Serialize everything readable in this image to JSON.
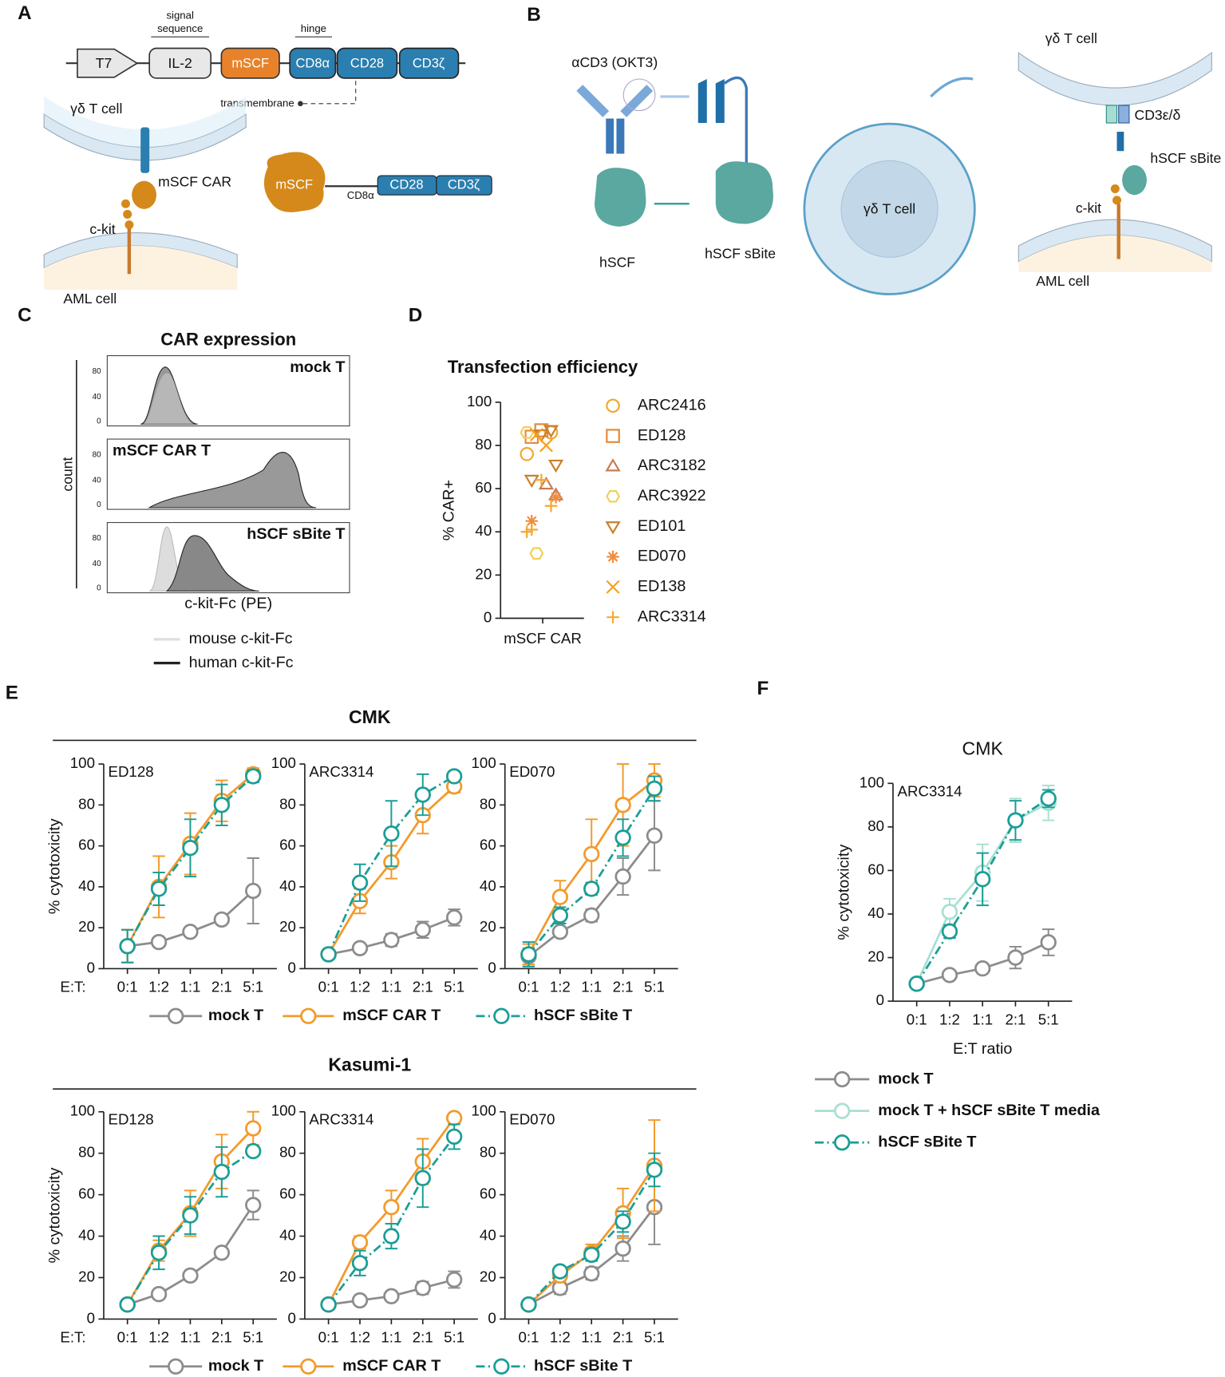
{
  "panel_labels": [
    "A",
    "B",
    "C",
    "D",
    "E",
    "F"
  ],
  "panel_a": {
    "t7": "T7",
    "il2": "IL-2",
    "mscf": "mSCF",
    "cd8a": "CD8α",
    "cd28": "CD28",
    "cd3z": "CD3ζ",
    "signal_1": "signal",
    "signal_2": "sequence",
    "hinge": "hinge",
    "transmembrane": "transmembrane",
    "gd_cell": "γδ T cell",
    "car": "mSCF CAR",
    "ckit": "c-kit",
    "aml": "AML cell"
  },
  "panel_b": {
    "okt3": "αCD3 (OKT3)",
    "hscf": "hSCF",
    "sbite": "hSCF sBite",
    "gd_cell": "γδ T cell",
    "cd3": "CD3ε/δ",
    "ckit": "c-kit",
    "aml": "AML cell"
  },
  "panel_c": {
    "title": "CAR expression",
    "rows": [
      "mock T",
      "mSCF CAR T",
      "hSCF sBite T"
    ],
    "yticks": [
      "80",
      "40",
      "0"
    ],
    "y_label": "count",
    "x_label": "c-kit-Fc (PE)",
    "legend": [
      "mouse c-kit-Fc",
      "human c-kit-Fc"
    ]
  },
  "panel_e": {
    "groups": [
      "CMK",
      "Kasumi-1"
    ]
  },
  "chart_data": [
    {
      "type": "scatter",
      "title": "Transfection efficiency",
      "y_label": "% CAR+",
      "categories": [
        "mSCF CAR"
      ],
      "ylim": [
        0,
        100
      ],
      "yticks": [
        0,
        20,
        40,
        60,
        80,
        100
      ],
      "series": [
        {
          "name": "ARC2416",
          "color": "#f0a830",
          "marker": "circle",
          "values": [
            76,
            86
          ]
        },
        {
          "name": "ED128",
          "color": "#e68a3c",
          "marker": "square",
          "values": [
            87,
            84
          ]
        },
        {
          "name": "ARC3182",
          "color": "#c87a50",
          "marker": "triangle-up",
          "values": [
            57,
            62
          ]
        },
        {
          "name": "ARC3922",
          "color": "#f2cf5a",
          "marker": "hexagon",
          "values": [
            30,
            86
          ]
        },
        {
          "name": "ED101",
          "color": "#c8812e",
          "marker": "triangle-down",
          "values": [
            87,
            85,
            64,
            71
          ]
        },
        {
          "name": "ED070",
          "color": "#f08c3c",
          "marker": "asterisk",
          "values": [
            45,
            56
          ]
        },
        {
          "name": "ED138",
          "color": "#f5a020",
          "marker": "x",
          "values": [
            80,
            85
          ]
        },
        {
          "name": "ARC3314",
          "color": "#f5a830",
          "marker": "plus",
          "values": [
            40,
            52,
            64,
            41
          ]
        }
      ]
    },
    {
      "type": "line",
      "annotation": "ED128",
      "y_label": "% cytotoxicity",
      "x_label": "E:T:",
      "categories": [
        "0:1",
        "1:2",
        "1:1",
        "2:1",
        "5:1"
      ],
      "ylim": [
        0,
        100
      ],
      "yticks": [
        0,
        20,
        40,
        60,
        80,
        100
      ],
      "series": [
        {
          "name": "mock T",
          "color": "#8c8c8c",
          "style": "solid",
          "values": [
            11,
            13,
            18,
            24,
            38
          ],
          "errors": [
            8,
            2,
            2,
            2,
            16
          ]
        },
        {
          "name": "mSCF CAR T",
          "color": "#f39a2b",
          "style": "solid",
          "values": [
            11,
            40,
            61,
            82,
            95
          ],
          "errors": [
            8,
            15,
            15,
            10,
            3
          ]
        },
        {
          "name": "hSCF sBite T",
          "color": "#1a9e96",
          "style": "dash-dot",
          "values": [
            11,
            39,
            59,
            80,
            94
          ],
          "errors": [
            8,
            8,
            14,
            10,
            3
          ]
        }
      ]
    },
    {
      "type": "line",
      "annotation": "ARC3314",
      "categories": [
        "0:1",
        "1:2",
        "1:1",
        "2:1",
        "5:1"
      ],
      "ylim": [
        0,
        100
      ],
      "yticks": [
        0,
        20,
        40,
        60,
        80,
        100
      ],
      "series": [
        {
          "name": "mock T",
          "color": "#8c8c8c",
          "style": "solid",
          "values": [
            7,
            10,
            14,
            19,
            25
          ],
          "errors": [
            1,
            2,
            3,
            4,
            4
          ]
        },
        {
          "name": "mSCF CAR T",
          "color": "#f39a2b",
          "style": "solid",
          "values": [
            7,
            33,
            52,
            75,
            89
          ],
          "errors": [
            1,
            6,
            8,
            9,
            3
          ]
        },
        {
          "name": "hSCF sBite T",
          "color": "#1a9e96",
          "style": "dash-dot",
          "values": [
            7,
            42,
            66,
            85,
            94
          ],
          "errors": [
            1,
            9,
            16,
            10,
            2
          ]
        }
      ]
    },
    {
      "type": "line",
      "annotation": "ED070",
      "categories": [
        "0:1",
        "1:2",
        "1:1",
        "2:1",
        "5:1"
      ],
      "ylim": [
        0,
        100
      ],
      "yticks": [
        0,
        20,
        40,
        60,
        80,
        100
      ],
      "series": [
        {
          "name": "mock T",
          "color": "#8c8c8c",
          "style": "solid",
          "values": [
            6,
            18,
            26,
            45,
            65
          ],
          "errors": [
            4,
            2,
            3,
            9,
            17
          ]
        },
        {
          "name": "mSCF CAR T",
          "color": "#f39a2b",
          "style": "solid",
          "values": [
            7,
            35,
            56,
            80,
            92
          ],
          "errors": [
            5,
            8,
            17,
            20,
            8
          ]
        },
        {
          "name": "hSCF sBite T",
          "color": "#1a9e96",
          "style": "dash-dot",
          "values": [
            7,
            26,
            39,
            64,
            88
          ],
          "errors": [
            6,
            4,
            3,
            9,
            6
          ]
        }
      ]
    },
    {
      "type": "line",
      "annotation": "ED128",
      "y_label": "% cytotoxicity",
      "x_label": "E:T:",
      "categories": [
        "0:1",
        "1:2",
        "1:1",
        "2:1",
        "5:1"
      ],
      "ylim": [
        0,
        100
      ],
      "yticks": [
        0,
        20,
        40,
        60,
        80,
        100
      ],
      "series": [
        {
          "name": "mock T",
          "color": "#8c8c8c",
          "style": "solid",
          "values": [
            7,
            12,
            21,
            32,
            55
          ],
          "errors": [
            1,
            1,
            1,
            1,
            7
          ]
        },
        {
          "name": "mSCF CAR T",
          "color": "#f39a2b",
          "style": "solid",
          "values": [
            7,
            33,
            51,
            76,
            92
          ],
          "errors": [
            1,
            5,
            11,
            13,
            8
          ]
        },
        {
          "name": "hSCF sBite T",
          "color": "#1a9e96",
          "style": "dash-dot",
          "values": [
            7,
            32,
            50,
            71,
            81
          ],
          "errors": [
            1,
            8,
            9,
            12,
            2
          ]
        }
      ]
    },
    {
      "type": "line",
      "annotation": "ARC3314",
      "categories": [
        "0:1",
        "1:2",
        "1:1",
        "2:1",
        "5:1"
      ],
      "ylim": [
        0,
        100
      ],
      "yticks": [
        0,
        20,
        40,
        60,
        80,
        100
      ],
      "series": [
        {
          "name": "mock T",
          "color": "#8c8c8c",
          "style": "solid",
          "values": [
            7,
            9,
            11,
            15,
            19
          ],
          "errors": [
            1,
            1,
            1,
            3,
            4
          ]
        },
        {
          "name": "mSCF CAR T",
          "color": "#f39a2b",
          "style": "solid",
          "values": [
            7,
            37,
            54,
            76,
            97
          ],
          "errors": [
            1,
            3,
            8,
            11,
            2
          ]
        },
        {
          "name": "hSCF sBite T",
          "color": "#1a9e96",
          "style": "dash-dot",
          "values": [
            7,
            27,
            40,
            68,
            88
          ],
          "errors": [
            1,
            6,
            6,
            14,
            6
          ]
        }
      ]
    },
    {
      "type": "line",
      "annotation": "ED070",
      "categories": [
        "0:1",
        "1:2",
        "1:1",
        "2:1",
        "5:1"
      ],
      "ylim": [
        0,
        100
      ],
      "yticks": [
        0,
        20,
        40,
        60,
        80,
        100
      ],
      "series": [
        {
          "name": "mock T",
          "color": "#8c8c8c",
          "style": "solid",
          "values": [
            7,
            15,
            22,
            34,
            54
          ],
          "errors": [
            1,
            3,
            3,
            6,
            18
          ]
        },
        {
          "name": "mSCF CAR T",
          "color": "#f39a2b",
          "style": "solid",
          "values": [
            7,
            21,
            32,
            51,
            74
          ],
          "errors": [
            1,
            3,
            4,
            12,
            22
          ]
        },
        {
          "name": "hSCF sBite T",
          "color": "#1a9e96",
          "style": "dash-dot",
          "values": [
            7,
            23,
            31,
            47,
            72
          ],
          "errors": [
            1,
            2,
            3,
            5,
            8
          ]
        }
      ]
    },
    {
      "type": "line",
      "title": "CMK",
      "annotation": "ARC3314",
      "y_label": "% cytotoxicity",
      "x_label": "E:T ratio",
      "categories": [
        "0:1",
        "1:2",
        "1:1",
        "2:1",
        "5:1"
      ],
      "ylim": [
        0,
        100
      ],
      "yticks": [
        0,
        20,
        40,
        60,
        80,
        100
      ],
      "series": [
        {
          "name": "mock T",
          "color": "#8c8c8c",
          "style": "solid",
          "values": [
            8,
            12,
            15,
            20,
            27
          ],
          "errors": [
            1,
            1,
            1,
            5,
            6
          ]
        },
        {
          "name": "mock T + hSCF sBite T media",
          "color": "#a8e0d3",
          "style": "solid",
          "values": [
            8,
            41,
            59,
            83,
            91
          ],
          "errors": [
            1,
            6,
            13,
            10,
            8
          ]
        },
        {
          "name": "hSCF sBite T",
          "color": "#1a9e96",
          "style": "dash-dot",
          "values": [
            8,
            32,
            56,
            83,
            93
          ],
          "errors": [
            1,
            3,
            12,
            9,
            4
          ]
        }
      ]
    }
  ]
}
